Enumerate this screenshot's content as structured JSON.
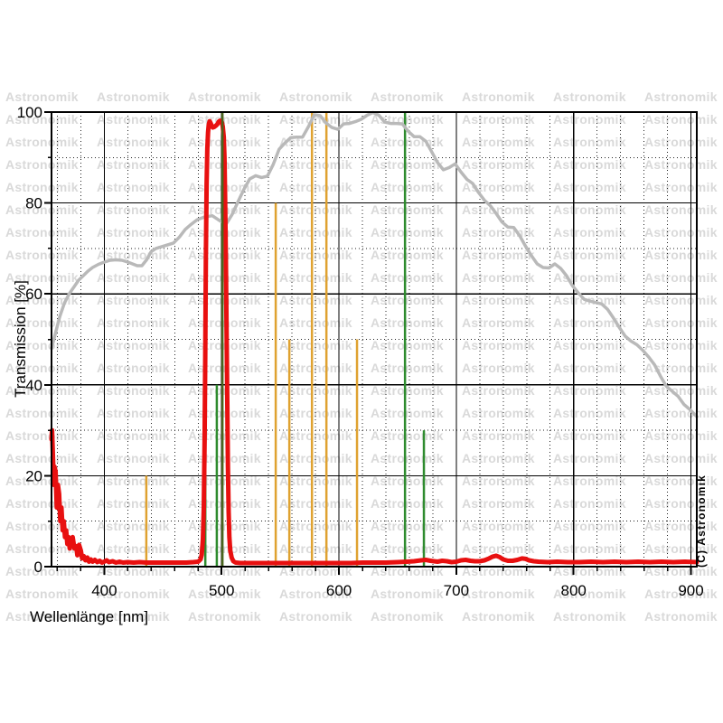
{
  "copyright": "(C) Astronomik",
  "watermark": {
    "text": "Astronomik",
    "color": "#d9d9d9"
  },
  "colors": {
    "red": "#e81010",
    "gray": "#b9b9b9",
    "orange": "#dfa231",
    "green": "#2e8b2e",
    "darkgreen": "#49651d",
    "axis": "#000000",
    "background": "#ffffff"
  },
  "chart_data": {
    "type": "line",
    "title": "",
    "xlabel": "Wellenlänge [nm]",
    "ylabel": "Transmission [%]",
    "xlim": [
      355,
      905
    ],
    "ylim": [
      0,
      100
    ],
    "x_major_ticks": [
      400,
      500,
      600,
      700,
      800,
      900
    ],
    "x_minor_step": 20,
    "y_major_ticks": [
      0,
      20,
      40,
      60,
      80,
      100
    ],
    "y_minor_step": 10,
    "grid": "major solid black, minor dotted",
    "legend": "none",
    "series": [
      {
        "name": "filter-transmission",
        "color_key": "red",
        "stroke_width": 5,
        "points": [
          [
            355,
            28
          ],
          [
            355.5,
            30
          ],
          [
            356,
            26
          ],
          [
            357,
            18
          ],
          [
            357.5,
            22
          ],
          [
            358.5,
            21
          ],
          [
            359.5,
            13
          ],
          [
            360.5,
            18
          ],
          [
            361.5,
            16
          ],
          [
            362.5,
            10
          ],
          [
            363.5,
            13
          ],
          [
            364.5,
            8
          ],
          [
            365.5,
            10
          ],
          [
            366.5,
            6.5
          ],
          [
            367.5,
            8
          ],
          [
            368.5,
            5
          ],
          [
            369.5,
            6.5
          ],
          [
            370.5,
            4
          ],
          [
            371.5,
            5.5
          ],
          [
            373,
            6.5
          ],
          [
            374.5,
            4
          ],
          [
            376,
            4.5
          ],
          [
            377,
            2.5
          ],
          [
            378.5,
            4.8
          ],
          [
            380,
            3.5
          ],
          [
            381,
            1.8
          ],
          [
            382.5,
            2.3
          ],
          [
            384,
            1.4
          ],
          [
            385.5,
            2
          ],
          [
            387,
            1.1
          ],
          [
            388.5,
            1.6
          ],
          [
            390,
            1.1
          ],
          [
            392,
            1.5
          ],
          [
            394,
            1
          ],
          [
            396,
            1.3
          ],
          [
            398,
            0.9
          ],
          [
            400,
            1.1
          ],
          [
            402,
            1.4
          ],
          [
            404,
            1
          ],
          [
            407,
            1.2
          ],
          [
            410,
            0.9
          ],
          [
            413,
            1.1
          ],
          [
            416,
            0.9
          ],
          [
            420,
            1
          ],
          [
            425,
            0.9
          ],
          [
            430,
            1
          ],
          [
            436,
            0.9
          ],
          [
            442,
            0.9
          ],
          [
            448,
            0.9
          ],
          [
            455,
            0.9
          ],
          [
            462,
            0.9
          ],
          [
            470,
            0.9
          ],
          [
            476,
            1
          ],
          [
            480,
            1.1
          ],
          [
            482,
            1.6
          ],
          [
            483,
            2.6
          ],
          [
            484,
            6
          ],
          [
            484.8,
            13
          ],
          [
            485.5,
            28
          ],
          [
            486,
            46
          ],
          [
            486.6,
            68
          ],
          [
            487.2,
            84
          ],
          [
            487.8,
            92
          ],
          [
            488.4,
            95.5
          ],
          [
            489,
            97.3
          ],
          [
            489.8,
            98
          ],
          [
            490.6,
            97.6
          ],
          [
            491.5,
            97
          ],
          [
            492.5,
            96.6
          ],
          [
            493.5,
            96.7
          ],
          [
            494.5,
            96.9
          ],
          [
            495.5,
            97.1
          ],
          [
            496.5,
            97.4
          ],
          [
            497.5,
            97.9
          ],
          [
            498.5,
            98.1
          ],
          [
            499.5,
            98
          ],
          [
            500.3,
            97.7
          ],
          [
            501,
            96.8
          ],
          [
            501.8,
            94.5
          ],
          [
            502.4,
            90
          ],
          [
            503,
            81
          ],
          [
            503.6,
            68
          ],
          [
            504.2,
            52
          ],
          [
            504.8,
            36
          ],
          [
            505.4,
            22
          ],
          [
            506,
            12
          ],
          [
            506.6,
            6.5
          ],
          [
            507.4,
            3.5
          ],
          [
            508.5,
            2
          ],
          [
            510,
            1.2
          ],
          [
            512,
            0.9
          ],
          [
            516,
            0.8
          ],
          [
            522,
            0.8
          ],
          [
            530,
            0.8
          ],
          [
            540,
            0.8
          ],
          [
            550,
            0.8
          ],
          [
            560,
            0.8
          ],
          [
            570,
            0.8
          ],
          [
            580,
            0.8
          ],
          [
            590,
            0.8
          ],
          [
            600,
            0.8
          ],
          [
            610,
            0.8
          ],
          [
            620,
            0.9
          ],
          [
            630,
            0.9
          ],
          [
            640,
            0.9
          ],
          [
            650,
            1
          ],
          [
            658,
            1.1
          ],
          [
            664,
            1.2
          ],
          [
            670,
            1.4
          ],
          [
            674,
            1.5
          ],
          [
            678,
            1.3
          ],
          [
            684,
            1.1
          ],
          [
            688,
            1.3
          ],
          [
            692,
            1.2
          ],
          [
            696,
            1
          ],
          [
            700,
            1.1
          ],
          [
            704,
            1.4
          ],
          [
            708,
            1.5
          ],
          [
            712,
            1.3
          ],
          [
            716,
            1.2
          ],
          [
            720,
            1.2
          ],
          [
            724,
            1.4
          ],
          [
            728,
            1.8
          ],
          [
            731,
            2.2
          ],
          [
            734,
            2.4
          ],
          [
            737,
            2.1
          ],
          [
            740,
            1.6
          ],
          [
            744,
            1.3
          ],
          [
            748,
            1.3
          ],
          [
            752,
            1.5
          ],
          [
            756,
            1.8
          ],
          [
            759,
            1.7
          ],
          [
            762,
            1.4
          ],
          [
            766,
            1.2
          ],
          [
            770,
            1.1
          ],
          [
            778,
            1
          ],
          [
            786,
            1.1
          ],
          [
            795,
            1
          ],
          [
            805,
            1
          ],
          [
            815,
            1.1
          ],
          [
            825,
            1
          ],
          [
            835,
            1.1
          ],
          [
            845,
            1
          ],
          [
            855,
            1.1
          ],
          [
            865,
            1
          ],
          [
            875,
            1.1
          ],
          [
            885,
            1
          ],
          [
            895,
            1.1
          ],
          [
            905,
            1
          ]
        ]
      },
      {
        "name": "reference-curve",
        "color_key": "gray",
        "stroke_width": 3.5,
        "points": [
          [
            355,
            48
          ],
          [
            358,
            51
          ],
          [
            362,
            55
          ],
          [
            366,
            58
          ],
          [
            370,
            60
          ],
          [
            374,
            61.5
          ],
          [
            378,
            63
          ],
          [
            382,
            64
          ],
          [
            386,
            65
          ],
          [
            390,
            65.8
          ],
          [
            395,
            66.5
          ],
          [
            400,
            67
          ],
          [
            405,
            67.4
          ],
          [
            410,
            67.5
          ],
          [
            415,
            67.4
          ],
          [
            420,
            67
          ],
          [
            424,
            66.6
          ],
          [
            428,
            66.2
          ],
          [
            432,
            66.2
          ],
          [
            436,
            67.5
          ],
          [
            440,
            69.3
          ],
          [
            444,
            70
          ],
          [
            449,
            70.4
          ],
          [
            454,
            70.8
          ],
          [
            459,
            71.2
          ],
          [
            464,
            72.5
          ],
          [
            469,
            74.2
          ],
          [
            474,
            75.3
          ],
          [
            479,
            76.3
          ],
          [
            485,
            76.9
          ],
          [
            492,
            77.2
          ],
          [
            499,
            76
          ],
          [
            504,
            75.4
          ],
          [
            509,
            77.5
          ],
          [
            514,
            80.3
          ],
          [
            519,
            83
          ],
          [
            524,
            85.3
          ],
          [
            529,
            86
          ],
          [
            534,
            85.6
          ],
          [
            539,
            85.9
          ],
          [
            544,
            88.5
          ],
          [
            549,
            91.8
          ],
          [
            554,
            93.2
          ],
          [
            559,
            94.4
          ],
          [
            564,
            94.5
          ],
          [
            569,
            94.5
          ],
          [
            574,
            96.8
          ],
          [
            579,
            99.4
          ],
          [
            584,
            99.2
          ],
          [
            589,
            97.6
          ],
          [
            594,
            96.6
          ],
          [
            599,
            96.2
          ],
          [
            604,
            97.4
          ],
          [
            609,
            97.5
          ],
          [
            614,
            97.9
          ],
          [
            619,
            98.4
          ],
          [
            624,
            99.3
          ],
          [
            629,
            99.9
          ],
          [
            634,
            99.3
          ],
          [
            639,
            97.8
          ],
          [
            644,
            97.5
          ],
          [
            649,
            97.5
          ],
          [
            654,
            97.4
          ],
          [
            659,
            95.8
          ],
          [
            664,
            94.6
          ],
          [
            669,
            94.6
          ],
          [
            674,
            93.6
          ],
          [
            679,
            91.3
          ],
          [
            684,
            88.9
          ],
          [
            689,
            87.3
          ],
          [
            694,
            87.8
          ],
          [
            699,
            88.6
          ],
          [
            704,
            86.8
          ],
          [
            709,
            85.2
          ],
          [
            714,
            84.3
          ],
          [
            719,
            82.3
          ],
          [
            724,
            80.6
          ],
          [
            729,
            79.4
          ],
          [
            734,
            77.7
          ],
          [
            739,
            75.8
          ],
          [
            744,
            74.7
          ],
          [
            749,
            74.6
          ],
          [
            754,
            72.8
          ],
          [
            759,
            70.5
          ],
          [
            764,
            68.4
          ],
          [
            769,
            66.6
          ],
          [
            774,
            65.8
          ],
          [
            779,
            65.7
          ],
          [
            784,
            66.6
          ],
          [
            789,
            65.6
          ],
          [
            794,
            64
          ],
          [
            799,
            61.8
          ],
          [
            804,
            60.2
          ],
          [
            809,
            58.8
          ],
          [
            814,
            58.4
          ],
          [
            819,
            58.1
          ],
          [
            824,
            57.8
          ],
          [
            829,
            56.6
          ],
          [
            834,
            54.7
          ],
          [
            839,
            52.6
          ],
          [
            844,
            50.7
          ],
          [
            849,
            49.6
          ],
          [
            854,
            48.8
          ],
          [
            859,
            47.6
          ],
          [
            864,
            46.1
          ],
          [
            869,
            44.4
          ],
          [
            874,
            41.9
          ],
          [
            879,
            39.7
          ],
          [
            884,
            38.6
          ],
          [
            889,
            37.5
          ],
          [
            894,
            35.7
          ],
          [
            899,
            34.6
          ],
          [
            905,
            33
          ]
        ]
      }
    ],
    "vertical_lines": [
      {
        "name": "line-436",
        "x": 435.8,
        "top": 20,
        "color_key": "orange"
      },
      {
        "name": "line-546",
        "x": 546.1,
        "top": 80,
        "color_key": "orange"
      },
      {
        "name": "line-558",
        "x": 557.7,
        "top": 50,
        "color_key": "orange"
      },
      {
        "name": "line-577",
        "x": 577.0,
        "top": 100,
        "color_key": "orange"
      },
      {
        "name": "line-589",
        "x": 589.3,
        "top": 100,
        "color_key": "orange"
      },
      {
        "name": "line-615",
        "x": 615.4,
        "top": 50,
        "color_key": "orange"
      },
      {
        "name": "line-486",
        "x": 486.1,
        "top": 40,
        "color_key": "green"
      },
      {
        "name": "line-496",
        "x": 495.9,
        "top": 40,
        "color_key": "green"
      },
      {
        "name": "line-656",
        "x": 656.3,
        "top": 100,
        "color_key": "green"
      },
      {
        "name": "line-672",
        "x": 672.4,
        "top": 30,
        "color_key": "green"
      },
      {
        "name": "line-501",
        "x": 500.7,
        "top": 100,
        "color_key": "darkgreen",
        "over_red": true
      }
    ]
  }
}
